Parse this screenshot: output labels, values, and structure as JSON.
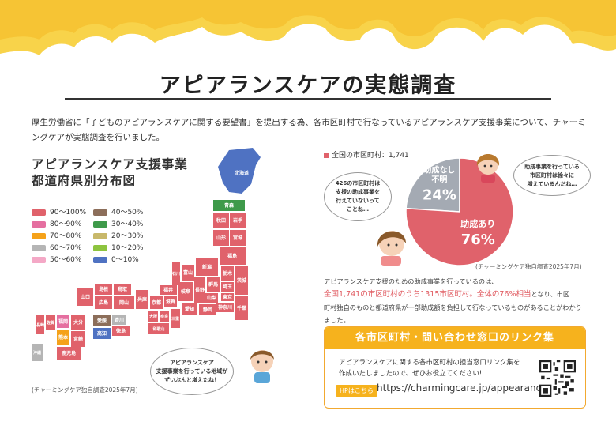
{
  "page": {
    "title": "アピアランスケアの実態調査",
    "intro": "厚生労働省に「子どものアピアランスケアに関する要望書」を提出する為、各市区町村で行なっているアピアランスケア支援事業について、チャーミングケアが実態調査を行いました。"
  },
  "map": {
    "title_line1": "アピアランスケア支援事業",
    "title_line2": "都道府県別分布図",
    "source": "(チャーミングケア独自調査2025年7月)",
    "bubble": "アピアランスケア\n支援事業を行っている地域が\nずいぶんと増えたね！",
    "legend": [
      {
        "label": "90〜100%",
        "color": "#e0626b"
      },
      {
        "label": "80〜90%",
        "color": "#e56fa0"
      },
      {
        "label": "70〜80%",
        "color": "#f5a21a"
      },
      {
        "label": "60〜70%",
        "color": "#b5b5b5"
      },
      {
        "label": "50〜60%",
        "color": "#f4a8c6"
      },
      {
        "label": "40〜50%",
        "color": "#8c6e5a"
      },
      {
        "label": "30〜40%",
        "color": "#3e9a4a"
      },
      {
        "label": "20〜30%",
        "color": "#c8b86a"
      },
      {
        "label": "10〜20%",
        "color": "#8dc43f"
      },
      {
        "label": "0〜10%",
        "color": "#4f72c2"
      }
    ],
    "labels": {
      "hokkaido": "北海道",
      "aomori": "青森",
      "akita": "秋田",
      "iwate": "岩手",
      "yamagata": "山形",
      "miyagi": "宮城",
      "fukushima": "福島",
      "niigata": "新潟",
      "toyama": "富山",
      "ishikawa": "石川",
      "nagano": "長野",
      "gunma": "群馬",
      "tochigi": "栃木",
      "ibaraki": "茨城",
      "saitama": "埼玉",
      "tokyo": "東京",
      "chiba": "千葉",
      "kanagawa": "神奈川",
      "yamanashi": "山梨",
      "shizuoka": "静岡",
      "aichi": "愛知",
      "gifu": "岐阜",
      "fukui": "福井",
      "shiga": "滋賀",
      "kyoto": "京都",
      "hyogo": "兵庫",
      "osaka": "大阪",
      "nara": "奈良",
      "wakayama": "和歌山",
      "mie": "三重",
      "tottori": "鳥取",
      "shimane": "島根",
      "okayama": "岡山",
      "hiroshima": "広島",
      "yamaguchi": "山口",
      "kagawa": "香川",
      "tokushima": "徳島",
      "ehime": "愛媛",
      "kochi": "高知",
      "fukuoka": "福岡",
      "saga": "佐賀",
      "nagasaki": "長崎",
      "oita": "大分",
      "kumamoto": "熊本",
      "miyazaki": "宮崎",
      "kagoshima": "鹿児島",
      "okinawa": "沖縄"
    }
  },
  "pie": {
    "header": "全国の市区町村：1,741",
    "source": "(チャーミングケア独自調査2025年7月)",
    "bubble_left": "426の市区町村は\n支援の助成事業を\n行えていないって\nことね…",
    "bubble_right": "助成事業を行っている\n市区町村は徐々に\n増えているんだね…",
    "slices": [
      {
        "label": "助成あり",
        "value": 76,
        "value_text": "76%",
        "color": "#e0626b"
      },
      {
        "label": "助成なし\n不明",
        "value": 24,
        "value_text": "24%",
        "color": "#a4aab3"
      }
    ]
  },
  "body": {
    "line1": "アピアランスケア支援のための助成事業を行っているのは、",
    "highlight": "全国1,741の市区町村のうち1315市区町村。全体の76%相当",
    "line2_rest": "となり、市区",
    "line3": "町村独自のものと都道府県が一部助成額を負担して行なっているものがあることがわかり",
    "line4": "ました。"
  },
  "link_box": {
    "header": "各市区町村・問い合わせ窓口のリンク集",
    "text_line1": "アピアランスケアに関する各市区町村の担当窓口リンク集を",
    "text_line2": "作成いたしましたので、ぜひお役立てください!",
    "button": "HPはこちら",
    "url": "https://charmingcare.jp/appearance/"
  }
}
